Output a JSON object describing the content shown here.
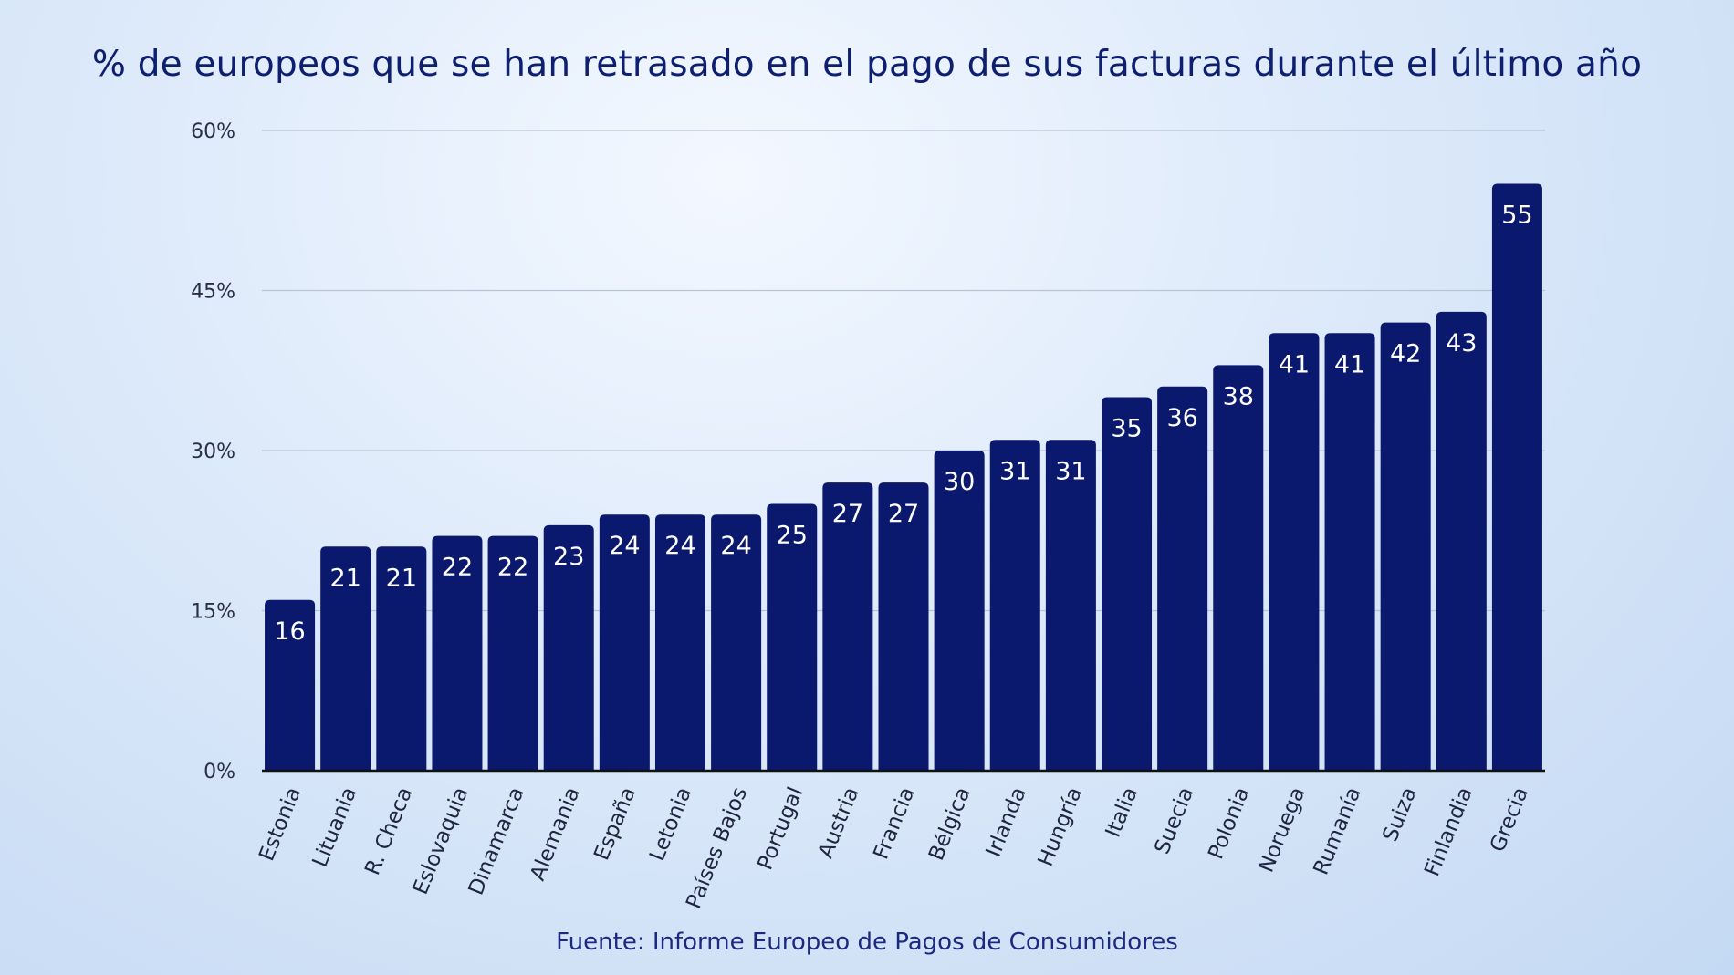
{
  "chart_data": {
    "type": "bar",
    "title": "% de europeos que se han retrasado en el pago de sus facturas durante el último año",
    "source": "Fuente: Informe Europeo de Pagos de Consumidores",
    "categories": [
      "Estonia",
      "Lituania",
      "R. Checa",
      "Eslovaquia",
      "Dinamarca",
      "Alemania",
      "España",
      "Letonia",
      "Países Bajos",
      "Portugal",
      "Austria",
      "Francia",
      "Bélgica",
      "Irlanda",
      "Hungría",
      "Italia",
      "Suecia",
      "Polonia",
      "Noruega",
      "Rumanía",
      "Suiza",
      "Finlandia",
      "Grecia"
    ],
    "values": [
      16,
      21,
      21,
      22,
      22,
      23,
      24,
      24,
      24,
      25,
      27,
      27,
      30,
      31,
      31,
      35,
      36,
      38,
      41,
      41,
      42,
      43,
      55
    ],
    "ylim": [
      0,
      60
    ],
    "yticks": [
      0,
      15,
      30,
      45,
      60
    ],
    "ytick_labels": [
      "0%",
      "15%",
      "30%",
      "45%",
      "60%"
    ],
    "xlabel": "",
    "ylabel": "",
    "grid": true,
    "bar_color": "#0a186e",
    "label_color": "#ffffff"
  }
}
